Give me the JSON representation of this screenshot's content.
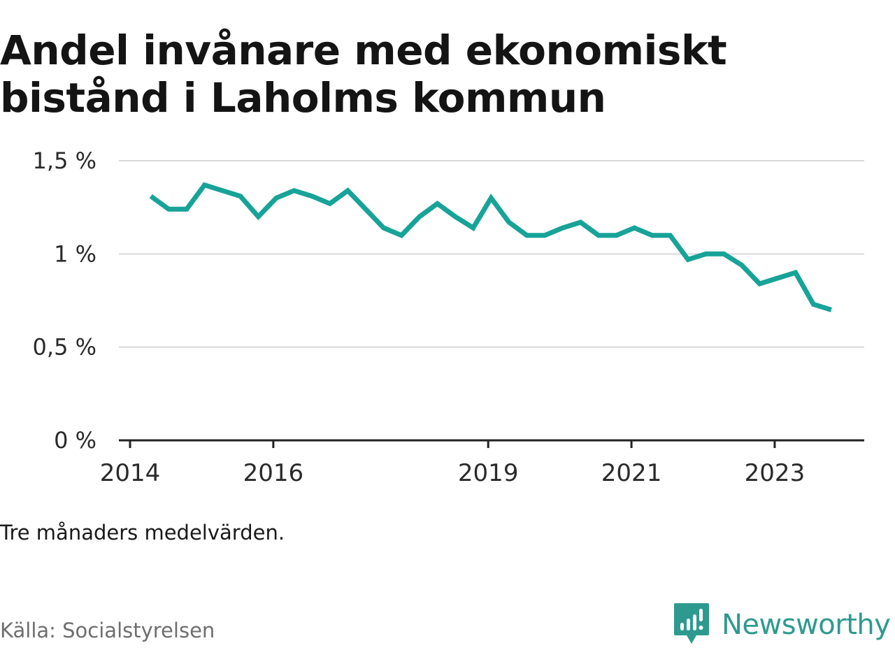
{
  "title": "Andel invånare med ekonomiskt bistånd i Laholms kommun",
  "note": "Tre månaders medelvärden.",
  "source": "Källa: Socialstyrelsen",
  "brand": {
    "name": "Newsworthy",
    "icon": "bar-chart-speech-bubble-icon",
    "color": "#2e9a8f"
  },
  "chart_data": {
    "type": "line",
    "ylim": [
      0,
      1.5
    ],
    "yticks": [
      {
        "value": 0,
        "label": "0 %"
      },
      {
        "value": 0.5,
        "label": "0,5 %"
      },
      {
        "value": 1,
        "label": "1 %"
      },
      {
        "value": 1.5,
        "label": "1,5 %"
      }
    ],
    "xlim": [
      2014.0,
      2024.25
    ],
    "xticks": [
      {
        "value": 2014.0,
        "label": "2014"
      },
      {
        "value": 2016.0,
        "label": "2016"
      },
      {
        "value": 2019.0,
        "label": "2019"
      },
      {
        "value": 2021.0,
        "label": "2021"
      },
      {
        "value": 2023.0,
        "label": "2023"
      }
    ],
    "grid": true,
    "series": [
      {
        "color": "#17a398",
        "x": [
          2014.29,
          2014.54,
          2014.79,
          2015.04,
          2015.29,
          2015.54,
          2015.79,
          2016.04,
          2016.29,
          2016.54,
          2016.79,
          2017.04,
          2017.29,
          2017.54,
          2017.79,
          2018.04,
          2018.29,
          2018.54,
          2018.79,
          2019.04,
          2019.29,
          2019.54,
          2019.79,
          2020.04,
          2020.29,
          2020.54,
          2020.79,
          2021.04,
          2021.29,
          2021.54,
          2021.79,
          2022.04,
          2022.29,
          2022.54,
          2022.79,
          2023.04,
          2023.29,
          2023.54,
          2023.79
        ],
        "values": [
          1.31,
          1.24,
          1.24,
          1.37,
          1.34,
          1.31,
          1.2,
          1.3,
          1.34,
          1.31,
          1.27,
          1.34,
          1.24,
          1.14,
          1.1,
          1.2,
          1.27,
          1.2,
          1.14,
          1.3,
          1.17,
          1.1,
          1.1,
          1.14,
          1.17,
          1.1,
          1.1,
          1.14,
          1.1,
          1.1,
          0.97,
          1.0,
          1.0,
          0.94,
          0.84,
          0.87,
          0.9,
          0.73,
          0.7
        ]
      }
    ]
  }
}
